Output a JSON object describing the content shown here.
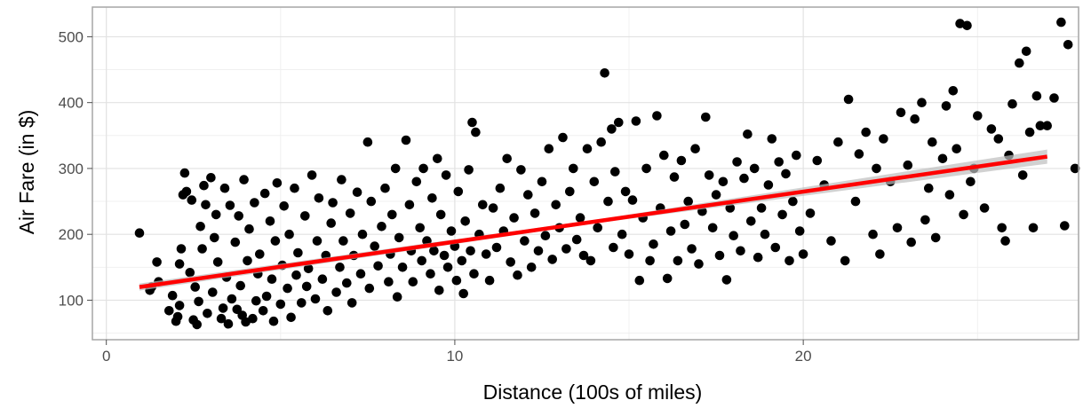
{
  "chart_data": {
    "type": "scatter",
    "title": "",
    "xlabel": "Distance (100s of miles)",
    "ylabel": "Air Fare (in $)",
    "xlim": [
      -0.4,
      27.9
    ],
    "ylim": [
      40,
      545
    ],
    "x_ticks": [
      0,
      10,
      20
    ],
    "x_tick_labels": [
      "0",
      "10",
      "20"
    ],
    "y_ticks": [
      100,
      200,
      300,
      400,
      500
    ],
    "y_tick_labels": [
      "100",
      "200",
      "300",
      "400",
      "500"
    ],
    "grid": true,
    "legend": "none",
    "points_color": "#000000",
    "fit": {
      "type": "linear",
      "x_range": [
        0.95,
        27.0
      ],
      "y_at_start": 120,
      "y_at_end": 318,
      "line_color": "#ff0000",
      "band_color": "#bebebe"
    },
    "points": [
      [
        0.95,
        202
      ],
      [
        1.25,
        115
      ],
      [
        1.3,
        120
      ],
      [
        1.45,
        158
      ],
      [
        1.5,
        128
      ],
      [
        1.8,
        84
      ],
      [
        1.9,
        107
      ],
      [
        2.0,
        68
      ],
      [
        2.05,
        75
      ],
      [
        2.1,
        92
      ],
      [
        2.1,
        155
      ],
      [
        2.15,
        178
      ],
      [
        2.2,
        260
      ],
      [
        2.25,
        293
      ],
      [
        2.3,
        265
      ],
      [
        2.4,
        142
      ],
      [
        2.45,
        252
      ],
      [
        2.5,
        70
      ],
      [
        2.55,
        120
      ],
      [
        2.6,
        63
      ],
      [
        2.65,
        98
      ],
      [
        2.7,
        212
      ],
      [
        2.75,
        178
      ],
      [
        2.8,
        274
      ],
      [
        2.85,
        245
      ],
      [
        2.9,
        80
      ],
      [
        3.0,
        286
      ],
      [
        3.05,
        112
      ],
      [
        3.1,
        195
      ],
      [
        3.15,
        230
      ],
      [
        3.2,
        158
      ],
      [
        3.3,
        72
      ],
      [
        3.35,
        88
      ],
      [
        3.4,
        270
      ],
      [
        3.45,
        135
      ],
      [
        3.5,
        64
      ],
      [
        3.55,
        244
      ],
      [
        3.6,
        102
      ],
      [
        3.7,
        188
      ],
      [
        3.75,
        86
      ],
      [
        3.8,
        228
      ],
      [
        3.85,
        122
      ],
      [
        3.9,
        77
      ],
      [
        3.95,
        283
      ],
      [
        4.0,
        67
      ],
      [
        4.05,
        160
      ],
      [
        4.1,
        208
      ],
      [
        4.2,
        72
      ],
      [
        4.25,
        248
      ],
      [
        4.3,
        99
      ],
      [
        4.35,
        140
      ],
      [
        4.4,
        170
      ],
      [
        4.5,
        84
      ],
      [
        4.55,
        262
      ],
      [
        4.6,
        106
      ],
      [
        4.7,
        220
      ],
      [
        4.75,
        132
      ],
      [
        4.8,
        68
      ],
      [
        4.85,
        190
      ],
      [
        4.9,
        278
      ],
      [
        5.0,
        94
      ],
      [
        5.05,
        153
      ],
      [
        5.1,
        243
      ],
      [
        5.2,
        118
      ],
      [
        5.25,
        200
      ],
      [
        5.3,
        74
      ],
      [
        5.4,
        270
      ],
      [
        5.45,
        138
      ],
      [
        5.5,
        172
      ],
      [
        5.6,
        96
      ],
      [
        5.7,
        228
      ],
      [
        5.75,
        121
      ],
      [
        5.8,
        148
      ],
      [
        5.9,
        290
      ],
      [
        6.0,
        102
      ],
      [
        6.05,
        190
      ],
      [
        6.1,
        255
      ],
      [
        6.2,
        132
      ],
      [
        6.3,
        168
      ],
      [
        6.35,
        84
      ],
      [
        6.45,
        217
      ],
      [
        6.5,
        248
      ],
      [
        6.6,
        112
      ],
      [
        6.7,
        150
      ],
      [
        6.75,
        283
      ],
      [
        6.8,
        190
      ],
      [
        6.9,
        126
      ],
      [
        7.0,
        232
      ],
      [
        7.05,
        96
      ],
      [
        7.1,
        168
      ],
      [
        7.2,
        264
      ],
      [
        7.3,
        140
      ],
      [
        7.35,
        200
      ],
      [
        7.5,
        340
      ],
      [
        7.55,
        118
      ],
      [
        7.6,
        250
      ],
      [
        7.7,
        182
      ],
      [
        7.8,
        152
      ],
      [
        7.9,
        212
      ],
      [
        8.0,
        270
      ],
      [
        8.1,
        128
      ],
      [
        8.15,
        170
      ],
      [
        8.2,
        230
      ],
      [
        8.3,
        300
      ],
      [
        8.35,
        105
      ],
      [
        8.4,
        195
      ],
      [
        8.5,
        150
      ],
      [
        8.6,
        343
      ],
      [
        8.7,
        245
      ],
      [
        8.75,
        175
      ],
      [
        8.8,
        128
      ],
      [
        8.9,
        280
      ],
      [
        9.0,
        210
      ],
      [
        9.05,
        160
      ],
      [
        9.1,
        300
      ],
      [
        9.2,
        190
      ],
      [
        9.3,
        140
      ],
      [
        9.35,
        255
      ],
      [
        9.4,
        175
      ],
      [
        9.5,
        315
      ],
      [
        9.55,
        115
      ],
      [
        9.6,
        230
      ],
      [
        9.7,
        168
      ],
      [
        9.75,
        290
      ],
      [
        9.8,
        150
      ],
      [
        9.9,
        205
      ],
      [
        10.0,
        182
      ],
      [
        10.05,
        130
      ],
      [
        10.1,
        265
      ],
      [
        10.2,
        160
      ],
      [
        10.25,
        110
      ],
      [
        10.3,
        220
      ],
      [
        10.4,
        298
      ],
      [
        10.45,
        175
      ],
      [
        10.5,
        370
      ],
      [
        10.55,
        140
      ],
      [
        10.6,
        355
      ],
      [
        10.7,
        200
      ],
      [
        10.8,
        245
      ],
      [
        10.9,
        170
      ],
      [
        11.0,
        130
      ],
      [
        11.1,
        240
      ],
      [
        11.2,
        180
      ],
      [
        11.3,
        270
      ],
      [
        11.4,
        205
      ],
      [
        11.5,
        315
      ],
      [
        11.6,
        158
      ],
      [
        11.7,
        225
      ],
      [
        11.8,
        138
      ],
      [
        11.9,
        298
      ],
      [
        12.0,
        190
      ],
      [
        12.1,
        260
      ],
      [
        12.2,
        150
      ],
      [
        12.3,
        232
      ],
      [
        12.4,
        175
      ],
      [
        12.5,
        280
      ],
      [
        12.6,
        198
      ],
      [
        12.7,
        330
      ],
      [
        12.8,
        162
      ],
      [
        12.9,
        245
      ],
      [
        13.0,
        210
      ],
      [
        13.1,
        347
      ],
      [
        13.2,
        178
      ],
      [
        13.3,
        265
      ],
      [
        13.4,
        300
      ],
      [
        13.5,
        192
      ],
      [
        13.6,
        225
      ],
      [
        13.7,
        168
      ],
      [
        13.8,
        330
      ],
      [
        13.9,
        160
      ],
      [
        14.0,
        280
      ],
      [
        14.1,
        210
      ],
      [
        14.2,
        340
      ],
      [
        14.3,
        445
      ],
      [
        14.4,
        250
      ],
      [
        14.5,
        360
      ],
      [
        14.55,
        180
      ],
      [
        14.6,
        295
      ],
      [
        14.7,
        370
      ],
      [
        14.8,
        200
      ],
      [
        14.9,
        265
      ],
      [
        15.0,
        170
      ],
      [
        15.1,
        252
      ],
      [
        15.2,
        372
      ],
      [
        15.3,
        130
      ],
      [
        15.4,
        225
      ],
      [
        15.5,
        300
      ],
      [
        15.6,
        160
      ],
      [
        15.7,
        185
      ],
      [
        15.8,
        380
      ],
      [
        15.9,
        240
      ],
      [
        16.0,
        320
      ],
      [
        16.1,
        133
      ],
      [
        16.2,
        205
      ],
      [
        16.3,
        287
      ],
      [
        16.4,
        160
      ],
      [
        16.5,
        312
      ],
      [
        16.6,
        215
      ],
      [
        16.7,
        250
      ],
      [
        16.8,
        178
      ],
      [
        16.9,
        330
      ],
      [
        17.0,
        155
      ],
      [
        17.1,
        235
      ],
      [
        17.2,
        378
      ],
      [
        17.3,
        290
      ],
      [
        17.4,
        210
      ],
      [
        17.5,
        260
      ],
      [
        17.6,
        168
      ],
      [
        17.7,
        280
      ],
      [
        17.8,
        131
      ],
      [
        17.9,
        240
      ],
      [
        18.0,
        198
      ],
      [
        18.1,
        310
      ],
      [
        18.2,
        175
      ],
      [
        18.3,
        285
      ],
      [
        18.4,
        352
      ],
      [
        18.5,
        220
      ],
      [
        18.6,
        300
      ],
      [
        18.7,
        165
      ],
      [
        18.8,
        240
      ],
      [
        18.9,
        200
      ],
      [
        19.0,
        275
      ],
      [
        19.1,
        345
      ],
      [
        19.2,
        180
      ],
      [
        19.3,
        310
      ],
      [
        19.4,
        230
      ],
      [
        19.5,
        292
      ],
      [
        19.6,
        160
      ],
      [
        19.7,
        250
      ],
      [
        19.8,
        320
      ],
      [
        19.9,
        205
      ],
      [
        20.0,
        170
      ],
      [
        20.2,
        232
      ],
      [
        20.4,
        312
      ],
      [
        20.6,
        275
      ],
      [
        20.8,
        190
      ],
      [
        21.0,
        340
      ],
      [
        21.2,
        160
      ],
      [
        21.3,
        405
      ],
      [
        21.5,
        250
      ],
      [
        21.6,
        322
      ],
      [
        21.8,
        355
      ],
      [
        22.0,
        200
      ],
      [
        22.1,
        300
      ],
      [
        22.2,
        170
      ],
      [
        22.3,
        345
      ],
      [
        22.5,
        280
      ],
      [
        22.7,
        210
      ],
      [
        22.8,
        385
      ],
      [
        23.0,
        305
      ],
      [
        23.1,
        188
      ],
      [
        23.2,
        375
      ],
      [
        23.4,
        400
      ],
      [
        23.5,
        222
      ],
      [
        23.6,
        270
      ],
      [
        23.7,
        340
      ],
      [
        23.8,
        195
      ],
      [
        24.0,
        315
      ],
      [
        24.1,
        395
      ],
      [
        24.2,
        260
      ],
      [
        24.3,
        418
      ],
      [
        24.4,
        330
      ],
      [
        24.5,
        520
      ],
      [
        24.6,
        230
      ],
      [
        24.7,
        517
      ],
      [
        24.8,
        280
      ],
      [
        24.9,
        300
      ],
      [
        25.0,
        380
      ],
      [
        25.2,
        240
      ],
      [
        25.4,
        360
      ],
      [
        25.6,
        345
      ],
      [
        25.7,
        210
      ],
      [
        25.8,
        190
      ],
      [
        25.9,
        320
      ],
      [
        26.0,
        398
      ],
      [
        26.2,
        460
      ],
      [
        26.3,
        290
      ],
      [
        26.4,
        478
      ],
      [
        26.5,
        355
      ],
      [
        26.6,
        210
      ],
      [
        26.7,
        410
      ],
      [
        26.8,
        365
      ],
      [
        27.0,
        365
      ],
      [
        27.2,
        407
      ],
      [
        27.4,
        522
      ],
      [
        27.5,
        213
      ],
      [
        27.6,
        488
      ],
      [
        27.8,
        300
      ]
    ]
  }
}
